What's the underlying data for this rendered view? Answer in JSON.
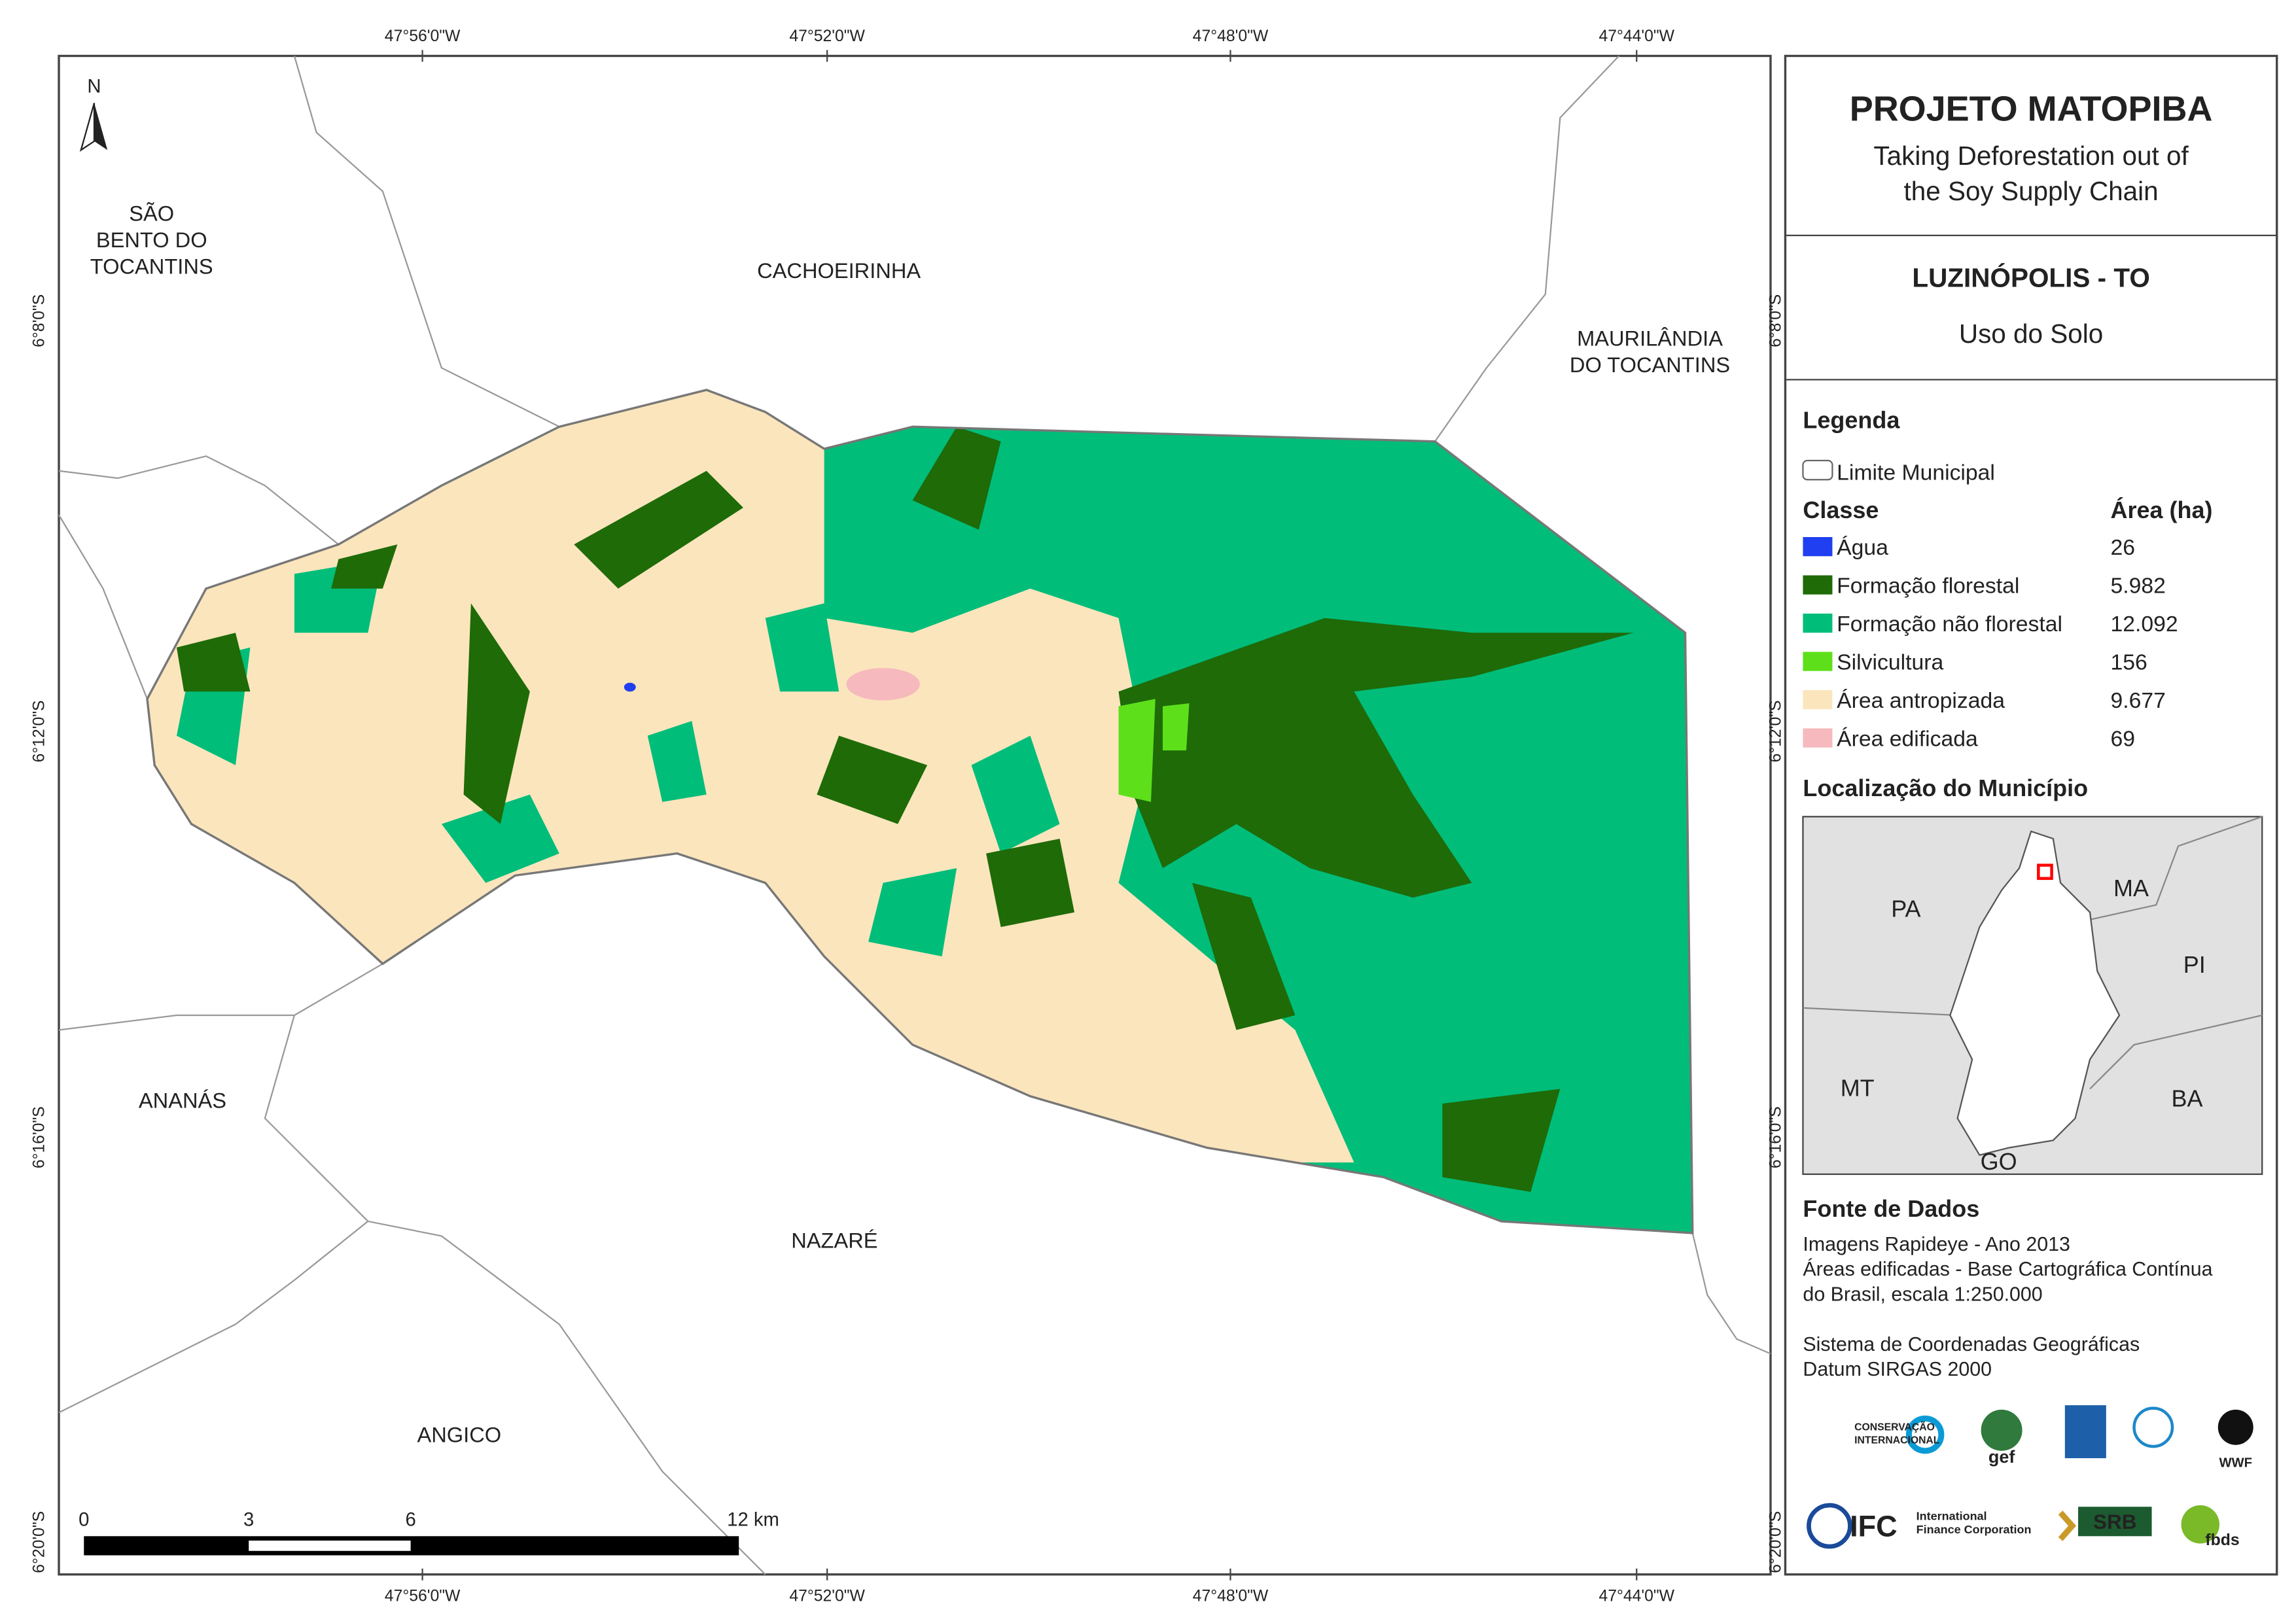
{
  "map": {
    "longitude_labels": [
      "47°56'0\"W",
      "47°52'0\"W",
      "47°48'0\"W",
      "47°44'0\"W"
    ],
    "latitude_labels": [
      "6°8'0\"S",
      "6°12'0\"S",
      "6°16'0\"S",
      "6°20'0\"S"
    ],
    "north_label": "N",
    "place_labels": [
      {
        "lines": [
          "SÃO",
          "BENTO DO",
          "TOCANTINS"
        ]
      },
      {
        "lines": [
          "CACHOEIRINHA"
        ]
      },
      {
        "lines": [
          "MAURILÂNDIA",
          "DO TOCANTINS"
        ]
      },
      {
        "lines": [
          "ANANÁS"
        ]
      },
      {
        "lines": [
          "NAZARÉ"
        ]
      },
      {
        "lines": [
          "ANGICO"
        ]
      }
    ],
    "scale_bar": [
      "0",
      "3",
      "6",
      "12 km"
    ]
  },
  "panel": {
    "title": "PROJETO MATOPIBA",
    "subtitle": [
      "Taking Deforestation out of",
      "the Soy Supply Chain"
    ],
    "municipality": "LUZINÓPOLIS - TO",
    "theme": "Uso do Solo"
  },
  "legend": {
    "title": "Legenda",
    "boundary": "Limite Municipal",
    "class_header": "Classe",
    "area_header": "Área (ha)",
    "items": [
      {
        "name": "Água",
        "area": "26",
        "color": "#1f3ff0"
      },
      {
        "name": "Formação florestal",
        "area": "5.982",
        "color": "#1e6b08"
      },
      {
        "name": "Formação não florestal",
        "area": "12.092",
        "color": "#00bd7a"
      },
      {
        "name": "Silvicultura",
        "area": "156",
        "color": "#5de01a"
      },
      {
        "name": "Área antropizada",
        "area": "9.677",
        "color": "#fbe5bd"
      },
      {
        "name": "Área edificada",
        "area": "69",
        "color": "#f6b9bd"
      }
    ]
  },
  "location": {
    "title": "Localização do Município",
    "labels": [
      "PA",
      "MA",
      "PI",
      "MT",
      "BA",
      "GO"
    ]
  },
  "sources": {
    "title": "Fonte de Dados",
    "lines": [
      "Imagens Rapideye - Ano 2013",
      "Áreas edificadas - Base Cartográfica Contínua",
      "do Brasil, escala 1:250.000"
    ],
    "crs": [
      "Sistema de Coordenadas Geográficas",
      "Datum SIRGAS 2000"
    ]
  },
  "logos": [
    "CONSERVAÇÃO",
    "INTERNACIONAL",
    "gef",
    "WWF",
    "IFC",
    "International",
    "Finance Corporation",
    "SRB",
    "fbds"
  ]
}
